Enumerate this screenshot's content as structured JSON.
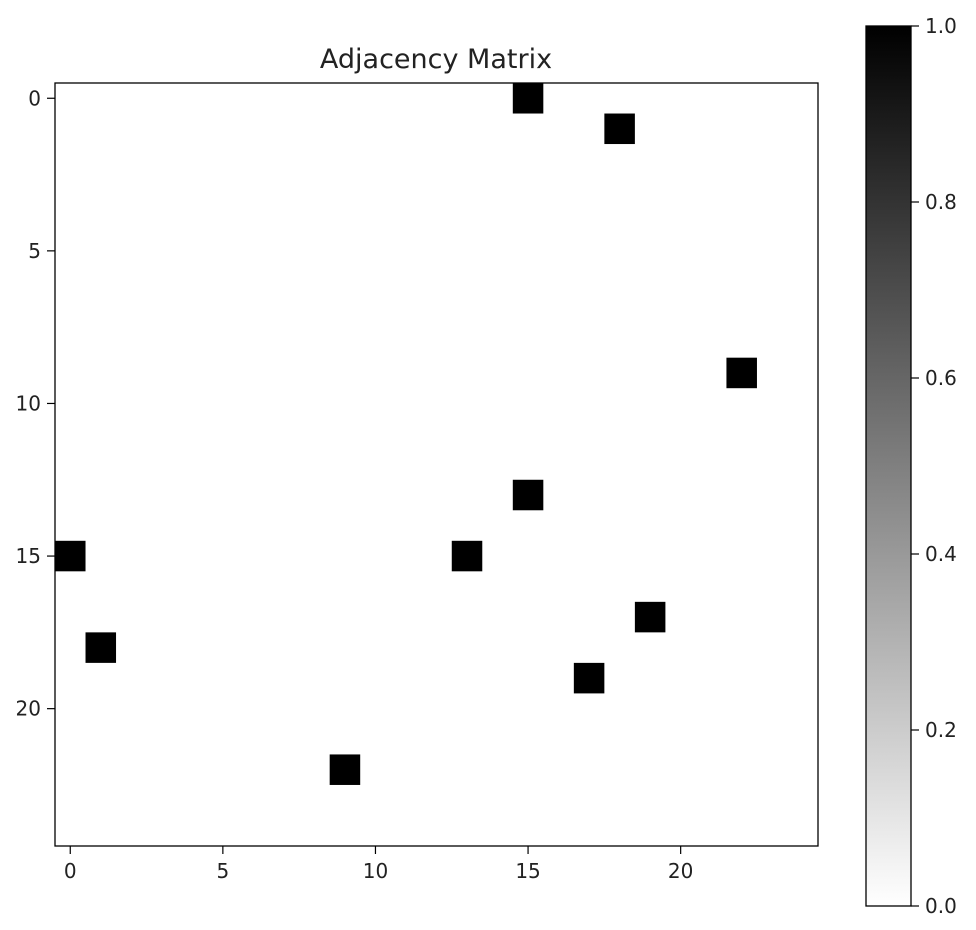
{
  "chart_data": {
    "type": "heatmap",
    "title": "Adjacency Matrix",
    "xlabel": "",
    "ylabel": "",
    "n_rows": 25,
    "n_cols": 25,
    "xlim": [
      -0.5,
      24.5
    ],
    "ylim": [
      24.5,
      -0.5
    ],
    "x_ticks": [
      0,
      5,
      10,
      15,
      20
    ],
    "y_ticks": [
      0,
      5,
      10,
      15,
      20
    ],
    "grid": false,
    "colormap": "gray_r",
    "cmap_colors": {
      "low": "#ffffff",
      "high": "#000000"
    },
    "color_range": [
      0.0,
      1.0
    ],
    "colorbar_ticks": [
      "0.0",
      "0.2",
      "0.4",
      "0.6",
      "0.8",
      "1.0"
    ],
    "colorbar_tick_values": [
      0.0,
      0.2,
      0.4,
      0.6,
      0.8,
      1.0
    ],
    "default_value": 0,
    "nonzero_cells": [
      {
        "row": 0,
        "col": 15,
        "value": 1
      },
      {
        "row": 1,
        "col": 18,
        "value": 1
      },
      {
        "row": 9,
        "col": 22,
        "value": 1
      },
      {
        "row": 13,
        "col": 15,
        "value": 1
      },
      {
        "row": 15,
        "col": 0,
        "value": 1
      },
      {
        "row": 15,
        "col": 13,
        "value": 1
      },
      {
        "row": 17,
        "col": 19,
        "value": 1
      },
      {
        "row": 18,
        "col": 1,
        "value": 1
      },
      {
        "row": 19,
        "col": 17,
        "value": 1
      },
      {
        "row": 22,
        "col": 9,
        "value": 1
      }
    ]
  }
}
